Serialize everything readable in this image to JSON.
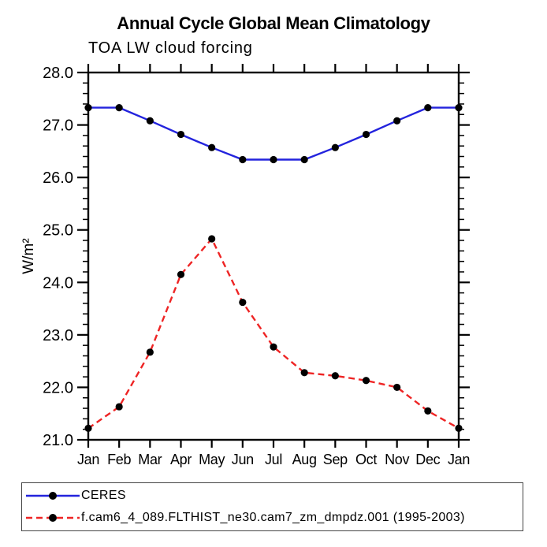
{
  "chart_data": {
    "type": "line",
    "title": "Annual Cycle Global Mean Climatology",
    "subtitle": "TOA LW cloud forcing",
    "ylabel": "W/m²",
    "xlabel": "",
    "x_tick_labels": [
      "Jan",
      "Feb",
      "Mar",
      "Apr",
      "May",
      "Jun",
      "Jul",
      "Aug",
      "Sep",
      "Oct",
      "Nov",
      "Dec",
      "Jan"
    ],
    "ylim": [
      21.0,
      28.0
    ],
    "y_major_step": 1.0,
    "y_minor_step": 0.2,
    "y_tick_labels": [
      "21.0",
      "22.0",
      "23.0",
      "24.0",
      "25.0",
      "26.0",
      "27.0",
      "28.0"
    ],
    "grid": false,
    "legend_position": "bottom-left-box",
    "marker_color": "#000000",
    "axis_color": "#000000",
    "series": [
      {
        "name": "CERES",
        "color": "#2323dd",
        "style": "solid",
        "marker": "filled-circle",
        "values": [
          27.33,
          27.33,
          27.08,
          26.82,
          26.57,
          26.34,
          26.34,
          26.34,
          26.57,
          26.82,
          27.08,
          27.33,
          27.33
        ]
      },
      {
        "name": "f.cam6_4_089.FLTHIST_ne30.cam7_zm_dmpdz.001 (1995-2003)",
        "color": "#ee2424",
        "style": "dashed",
        "marker": "filled-circle",
        "values": [
          21.22,
          21.63,
          22.67,
          24.15,
          24.83,
          23.62,
          22.77,
          22.28,
          22.22,
          22.13,
          22.0,
          21.55,
          21.22
        ]
      }
    ]
  }
}
